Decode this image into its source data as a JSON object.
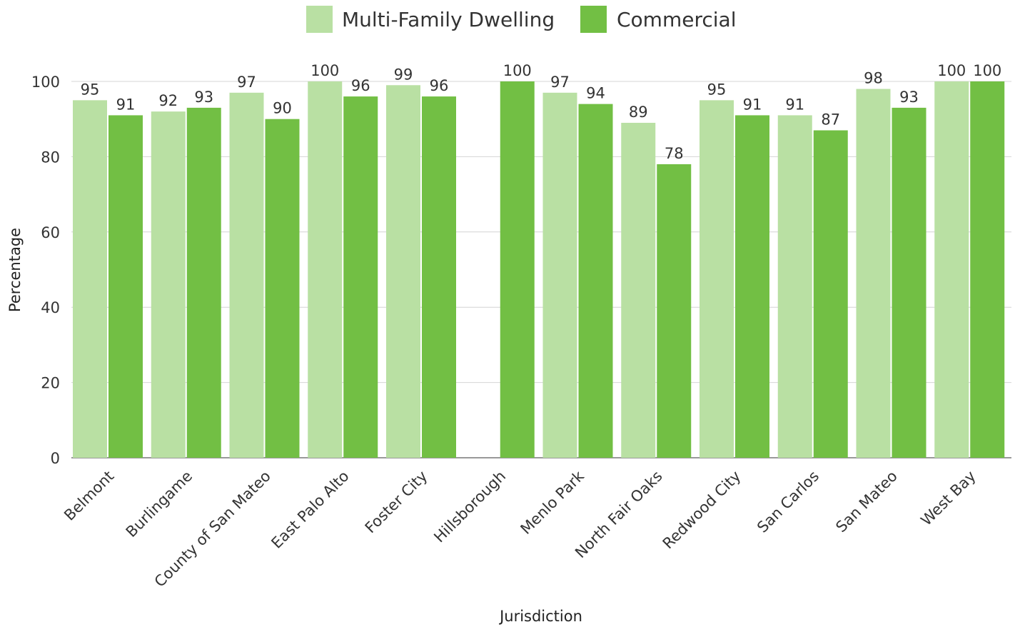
{
  "chart_data": {
    "type": "bar",
    "categories": [
      "Belmont",
      "Burlingame",
      "County of San Mateo",
      "East Palo Alto",
      "Foster City",
      "Hillsborough",
      "Menlo Park",
      "North Fair Oaks",
      "Redwood City",
      "San Carlos",
      "San Mateo",
      "West Bay"
    ],
    "series": [
      {
        "name": "Multi-Family Dwelling",
        "color": "#b9e0a3",
        "values": [
          95,
          92,
          97,
          100,
          99,
          null,
          97,
          89,
          95,
          91,
          98,
          100
        ]
      },
      {
        "name": "Commercial",
        "color": "#72bf44",
        "values": [
          91,
          93,
          90,
          96,
          96,
          100,
          94,
          78,
          91,
          87,
          93,
          100
        ]
      }
    ],
    "xlabel": "Jurisdiction",
    "ylabel": "Percentage",
    "ylim": [
      0,
      100
    ],
    "yticks": [
      0,
      20,
      40,
      60,
      80,
      100
    ],
    "grid": true,
    "legend_position": "top-center",
    "data_labels": true
  }
}
